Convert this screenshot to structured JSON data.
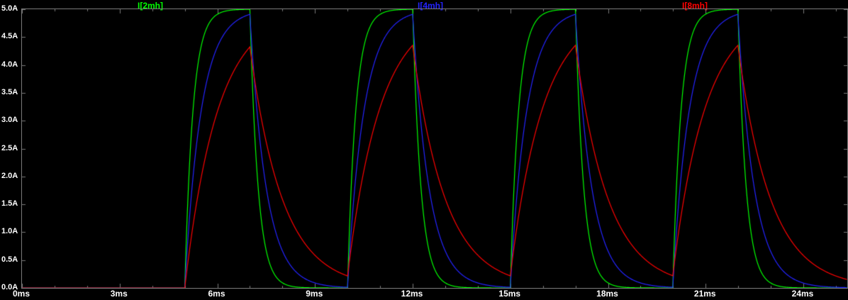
{
  "window": {
    "background": "#000000",
    "plot_border_color": "#7a7a7a",
    "axis_text_color": "#ffffff"
  },
  "chart_data": {
    "type": "line",
    "title": "",
    "grid": false,
    "legend_position": "top",
    "x_axis": {
      "unit": "ms",
      "range_ms": [
        0,
        25.35
      ],
      "tick_values_ms": [
        0,
        3,
        6,
        9,
        12,
        15,
        18,
        21,
        24
      ],
      "tick_labels": [
        "0ms",
        "3ms",
        "6ms",
        "9ms",
        "12ms",
        "15ms",
        "18ms",
        "21ms",
        "24ms"
      ],
      "minor_tick_step_ms": 1
    },
    "y_axis": {
      "unit": "A",
      "range_A": [
        0,
        5
      ],
      "tick_values_A": [
        0,
        0.5,
        1,
        1.5,
        2,
        2.5,
        3,
        3.5,
        4,
        4.5,
        5
      ],
      "tick_labels": [
        "0.0A",
        "0.5A",
        "1.0A",
        "1.5A",
        "2.0A",
        "2.5A",
        "3.0A",
        "3.5A",
        "4.0A",
        "4.5A",
        "5.0A"
      ]
    },
    "excitation": {
      "drive_amplitude_A": 5,
      "rise_start_times_ms": [
        5,
        10,
        15,
        20
      ],
      "on_time_ms": 2,
      "off_time_ms": 3,
      "period_ms": 5,
      "initial_flat_zero_until_ms": 5
    },
    "series": [
      {
        "name": "I(2mh)",
        "label": "I[2mh]",
        "color": "#00ff00",
        "tau_ms": 0.25,
        "peak_A": 5.0,
        "min_between_pulses_A": 0.0
      },
      {
        "name": "I(4mh)",
        "label": "I[4mh]",
        "color": "#2424ff",
        "tau_ms": 0.5,
        "peak_A": 4.91,
        "min_between_pulses_A": 0.01
      },
      {
        "name": "I(8mh)",
        "label": "I[8mh]",
        "color": "#ff0000",
        "tau_ms": 1.0,
        "peak_A": 4.35,
        "min_between_pulses_A": 0.22
      }
    ]
  }
}
